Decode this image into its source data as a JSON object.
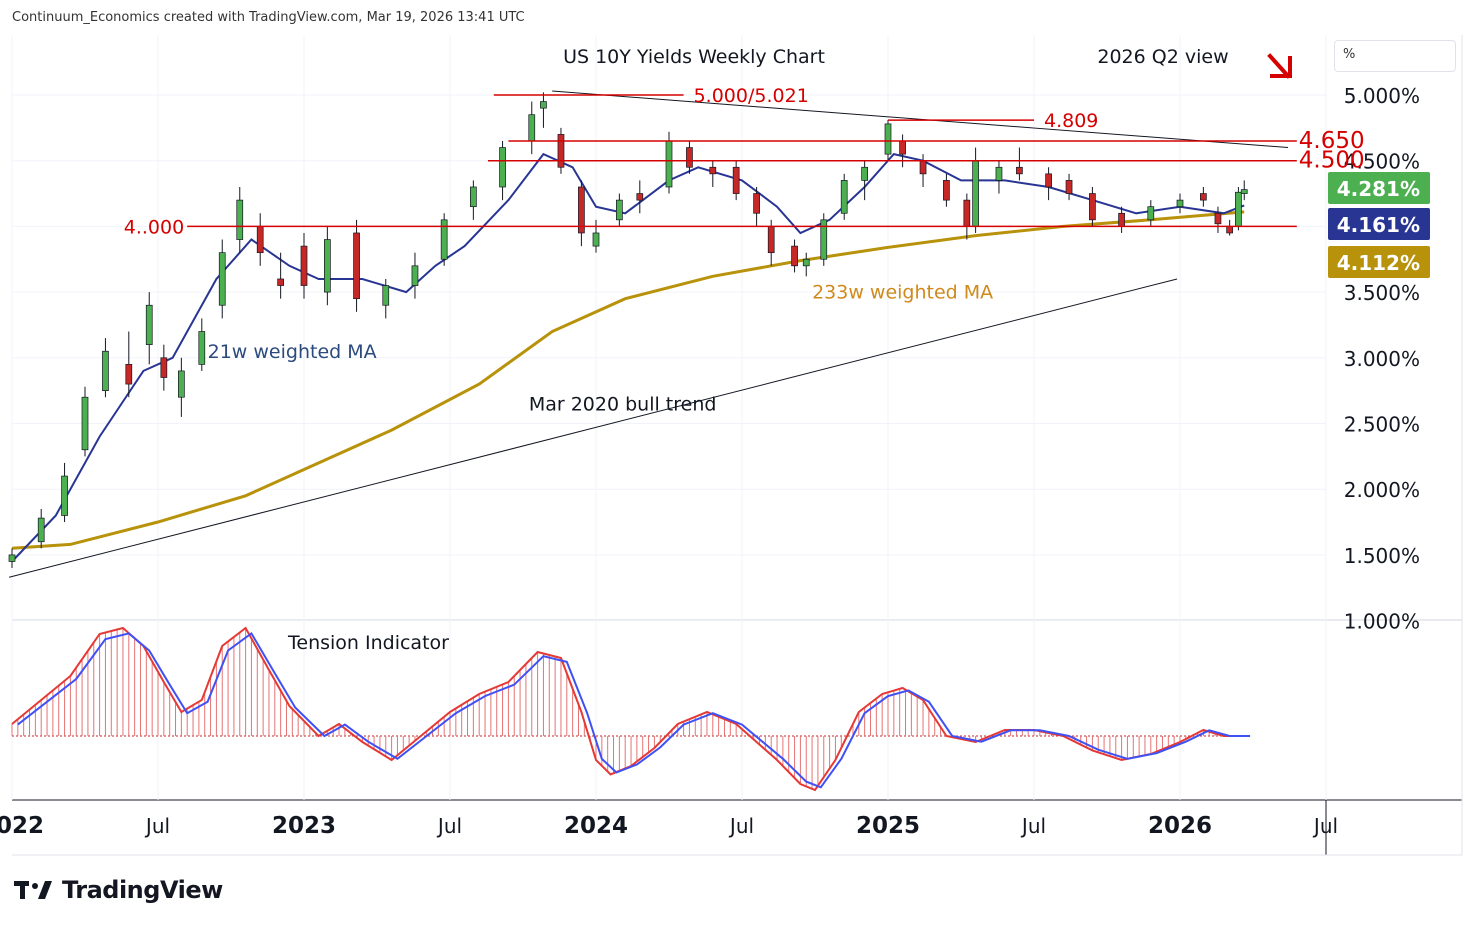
{
  "header": "Continuum_Economics created with TradingView.com, Mar 19, 2026 13:41 UTC",
  "unit": "%",
  "logo_text": "TradingView",
  "chart_data": {
    "type": "candlestick",
    "title": "US 10Y Yields Weekly Chart",
    "view_label": "2026 Q2 view",
    "y_ticks": [
      "5.000%",
      "4.500%",
      "3.500%",
      "3.000%",
      "2.500%",
      "2.000%",
      "1.500%",
      "1.000%"
    ],
    "y_tick_values": [
      5.0,
      4.5,
      3.5,
      3.0,
      2.5,
      2.0,
      1.5,
      1.0
    ],
    "ylim": [
      0.95,
      5.35
    ],
    "x_ticks": [
      "2022",
      "Jul",
      "2023",
      "Jul",
      "2024",
      "Jul",
      "2025",
      "Jul",
      "2026",
      "Jul"
    ],
    "x_tick_dates": [
      2022.0,
      2022.5,
      2023.0,
      2023.5,
      2024.0,
      2024.5,
      2025.0,
      2025.5,
      2026.0,
      2026.5
    ],
    "price_labels": [
      {
        "text": "4.281%",
        "value": 4.281,
        "color": "#4caf50"
      },
      {
        "text": "4.161%",
        "value": 4.161,
        "color": "#283593"
      },
      {
        "text": "4.112%",
        "value": 4.112,
        "color": "#b8920a"
      }
    ],
    "levels": [
      {
        "label": "5.000/5.021",
        "value": 5.0,
        "from": 2023.65,
        "to": 2024.3
      },
      {
        "label": "4.809",
        "value": 4.809,
        "from": 2025.0,
        "to": 2025.5
      },
      {
        "label": "4.650",
        "value": 4.65,
        "from": 2023.7,
        "to": 2026.4
      },
      {
        "label": "4.500",
        "value": 4.5,
        "from": 2023.63,
        "to": 2026.4
      },
      {
        "label": "4..000",
        "value": 4.0,
        "from": 2022.6,
        "to": 2026.4
      }
    ],
    "trendlines": [
      {
        "label": "Mar 2020 bull trend",
        "from": [
          2021.99,
          1.33
        ],
        "to": [
          2025.99,
          3.6
        ]
      },
      {
        "label": "",
        "from": [
          2023.85,
          5.03
        ],
        "to": [
          2026.37,
          4.6
        ]
      }
    ],
    "annotations": [
      {
        "text": "21w weighted MA",
        "date": 2022.67,
        "value": 3.0,
        "color": "#2b4a7d"
      },
      {
        "text": "233w weighted MA",
        "date": 2024.74,
        "value": 3.45,
        "color": "#d08a1c"
      },
      {
        "text": "Mar 2020 bull trend",
        "date": 2023.77,
        "value": 2.6,
        "color": "#131722"
      }
    ],
    "ma21_points": [
      [
        2022.0,
        1.45
      ],
      [
        2022.15,
        1.8
      ],
      [
        2022.3,
        2.4
      ],
      [
        2022.45,
        2.9
      ],
      [
        2022.55,
        3.0
      ],
      [
        2022.7,
        3.6
      ],
      [
        2022.82,
        3.9
      ],
      [
        2022.95,
        3.7
      ],
      [
        2023.05,
        3.6
      ],
      [
        2023.2,
        3.6
      ],
      [
        2023.35,
        3.5
      ],
      [
        2023.45,
        3.7
      ],
      [
        2023.55,
        3.85
      ],
      [
        2023.7,
        4.2
      ],
      [
        2023.82,
        4.55
      ],
      [
        2023.92,
        4.45
      ],
      [
        2024.0,
        4.15
      ],
      [
        2024.1,
        4.1
      ],
      [
        2024.25,
        4.35
      ],
      [
        2024.35,
        4.45
      ],
      [
        2024.5,
        4.35
      ],
      [
        2024.62,
        4.15
      ],
      [
        2024.7,
        3.95
      ],
      [
        2024.8,
        4.05
      ],
      [
        2024.92,
        4.3
      ],
      [
        2025.02,
        4.55
      ],
      [
        2025.12,
        4.5
      ],
      [
        2025.25,
        4.35
      ],
      [
        2025.4,
        4.35
      ],
      [
        2025.55,
        4.3
      ],
      [
        2025.7,
        4.2
      ],
      [
        2025.85,
        4.1
      ],
      [
        2026.0,
        4.15
      ],
      [
        2026.15,
        4.1
      ],
      [
        2026.22,
        4.16
      ]
    ],
    "ma233_points": [
      [
        2022.0,
        1.55
      ],
      [
        2022.2,
        1.58
      ],
      [
        2022.5,
        1.75
      ],
      [
        2022.8,
        1.95
      ],
      [
        2023.0,
        2.15
      ],
      [
        2023.3,
        2.45
      ],
      [
        2023.6,
        2.8
      ],
      [
        2023.85,
        3.2
      ],
      [
        2024.1,
        3.45
      ],
      [
        2024.4,
        3.62
      ],
      [
        2024.7,
        3.74
      ],
      [
        2025.0,
        3.84
      ],
      [
        2025.3,
        3.93
      ],
      [
        2025.6,
        4.0
      ],
      [
        2025.9,
        4.05
      ],
      [
        2026.22,
        4.11
      ]
    ],
    "candles": [
      {
        "x": 2022.0,
        "o": 1.45,
        "c": 1.5,
        "h": 1.55,
        "l": 1.4
      },
      {
        "x": 2022.1,
        "o": 1.6,
        "c": 1.78,
        "h": 1.85,
        "l": 1.55
      },
      {
        "x": 2022.18,
        "o": 1.8,
        "c": 2.1,
        "h": 2.2,
        "l": 1.75
      },
      {
        "x": 2022.25,
        "o": 2.3,
        "c": 2.7,
        "h": 2.78,
        "l": 2.25
      },
      {
        "x": 2022.32,
        "o": 2.75,
        "c": 3.05,
        "h": 3.15,
        "l": 2.7
      },
      {
        "x": 2022.4,
        "o": 2.95,
        "c": 2.8,
        "h": 3.2,
        "l": 2.7
      },
      {
        "x": 2022.47,
        "o": 3.1,
        "c": 3.4,
        "h": 3.5,
        "l": 2.95
      },
      {
        "x": 2022.52,
        "o": 3.0,
        "c": 2.85,
        "h": 3.1,
        "l": 2.75
      },
      {
        "x": 2022.58,
        "o": 2.7,
        "c": 2.9,
        "h": 3.0,
        "l": 2.55
      },
      {
        "x": 2022.65,
        "o": 2.95,
        "c": 3.2,
        "h": 3.3,
        "l": 2.9
      },
      {
        "x": 2022.72,
        "o": 3.4,
        "c": 3.8,
        "h": 3.9,
        "l": 3.3
      },
      {
        "x": 2022.78,
        "o": 3.9,
        "c": 4.2,
        "h": 4.3,
        "l": 3.8
      },
      {
        "x": 2022.85,
        "o": 4.0,
        "c": 3.8,
        "h": 4.1,
        "l": 3.7
      },
      {
        "x": 2022.92,
        "o": 3.6,
        "c": 3.55,
        "h": 3.8,
        "l": 3.45
      },
      {
        "x": 2023.0,
        "o": 3.85,
        "c": 3.55,
        "h": 3.95,
        "l": 3.45
      },
      {
        "x": 2023.08,
        "o": 3.5,
        "c": 3.9,
        "h": 4.0,
        "l": 3.4
      },
      {
        "x": 2023.18,
        "o": 3.95,
        "c": 3.45,
        "h": 4.05,
        "l": 3.35
      },
      {
        "x": 2023.28,
        "o": 3.4,
        "c": 3.55,
        "h": 3.6,
        "l": 3.3
      },
      {
        "x": 2023.38,
        "o": 3.55,
        "c": 3.7,
        "h": 3.8,
        "l": 3.45
      },
      {
        "x": 2023.48,
        "o": 3.75,
        "c": 4.05,
        "h": 4.1,
        "l": 3.7
      },
      {
        "x": 2023.58,
        "o": 4.15,
        "c": 4.3,
        "h": 4.35,
        "l": 4.05
      },
      {
        "x": 2023.68,
        "o": 4.3,
        "c": 4.6,
        "h": 4.65,
        "l": 4.2
      },
      {
        "x": 2023.78,
        "o": 4.65,
        "c": 4.85,
        "h": 4.95,
        "l": 4.55
      },
      {
        "x": 2023.82,
        "o": 4.9,
        "c": 4.95,
        "h": 5.02,
        "l": 4.75
      },
      {
        "x": 2023.88,
        "o": 4.7,
        "c": 4.45,
        "h": 4.75,
        "l": 4.4
      },
      {
        "x": 2023.95,
        "o": 4.3,
        "c": 3.95,
        "h": 4.35,
        "l": 3.85
      },
      {
        "x": 2024.0,
        "o": 3.85,
        "c": 3.95,
        "h": 4.05,
        "l": 3.8
      },
      {
        "x": 2024.08,
        "o": 4.05,
        "c": 4.2,
        "h": 4.25,
        "l": 4.0
      },
      {
        "x": 2024.15,
        "o": 4.25,
        "c": 4.2,
        "h": 4.35,
        "l": 4.1
      },
      {
        "x": 2024.25,
        "o": 4.3,
        "c": 4.65,
        "h": 4.72,
        "l": 4.25
      },
      {
        "x": 2024.32,
        "o": 4.6,
        "c": 4.45,
        "h": 4.65,
        "l": 4.4
      },
      {
        "x": 2024.4,
        "o": 4.45,
        "c": 4.4,
        "h": 4.5,
        "l": 4.3
      },
      {
        "x": 2024.48,
        "o": 4.45,
        "c": 4.25,
        "h": 4.5,
        "l": 4.2
      },
      {
        "x": 2024.55,
        "o": 4.25,
        "c": 4.1,
        "h": 4.3,
        "l": 4.0
      },
      {
        "x": 2024.6,
        "o": 4.0,
        "c": 3.8,
        "h": 4.05,
        "l": 3.7
      },
      {
        "x": 2024.68,
        "o": 3.85,
        "c": 3.7,
        "h": 3.9,
        "l": 3.65
      },
      {
        "x": 2024.72,
        "o": 3.7,
        "c": 3.75,
        "h": 3.8,
        "l": 3.62
      },
      {
        "x": 2024.78,
        "o": 3.75,
        "c": 4.05,
        "h": 4.1,
        "l": 3.7
      },
      {
        "x": 2024.85,
        "o": 4.1,
        "c": 4.35,
        "h": 4.4,
        "l": 4.05
      },
      {
        "x": 2024.92,
        "o": 4.35,
        "c": 4.45,
        "h": 4.5,
        "l": 4.2
      },
      {
        "x": 2025.0,
        "o": 4.55,
        "c": 4.78,
        "h": 4.81,
        "l": 4.5
      },
      {
        "x": 2025.05,
        "o": 4.65,
        "c": 4.55,
        "h": 4.7,
        "l": 4.45
      },
      {
        "x": 2025.12,
        "o": 4.5,
        "c": 4.4,
        "h": 4.55,
        "l": 4.3
      },
      {
        "x": 2025.2,
        "o": 4.35,
        "c": 4.2,
        "h": 4.4,
        "l": 4.15
      },
      {
        "x": 2025.27,
        "o": 4.2,
        "c": 4.0,
        "h": 4.25,
        "l": 3.9
      },
      {
        "x": 2025.3,
        "o": 4.0,
        "c": 4.5,
        "h": 4.6,
        "l": 3.95
      },
      {
        "x": 2025.38,
        "o": 4.35,
        "c": 4.45,
        "h": 4.5,
        "l": 4.25
      },
      {
        "x": 2025.45,
        "o": 4.45,
        "c": 4.4,
        "h": 4.6,
        "l": 4.35
      },
      {
        "x": 2025.55,
        "o": 4.4,
        "c": 4.3,
        "h": 4.45,
        "l": 4.2
      },
      {
        "x": 2025.62,
        "o": 4.35,
        "c": 4.25,
        "h": 4.4,
        "l": 4.2
      },
      {
        "x": 2025.7,
        "o": 4.25,
        "c": 4.05,
        "h": 4.3,
        "l": 4.0
      },
      {
        "x": 2025.8,
        "o": 4.1,
        "c": 4.0,
        "h": 4.15,
        "l": 3.95
      },
      {
        "x": 2025.9,
        "o": 4.05,
        "c": 4.15,
        "h": 4.2,
        "l": 4.0
      },
      {
        "x": 2026.0,
        "o": 4.15,
        "c": 4.2,
        "h": 4.25,
        "l": 4.1
      },
      {
        "x": 2026.08,
        "o": 4.25,
        "c": 4.2,
        "h": 4.3,
        "l": 4.15
      },
      {
        "x": 2026.13,
        "o": 4.1,
        "c": 4.02,
        "h": 4.15,
        "l": 3.95
      },
      {
        "x": 2026.17,
        "o": 4.0,
        "c": 3.95,
        "h": 4.05,
        "l": 3.93
      },
      {
        "x": 2026.2,
        "o": 4.0,
        "c": 4.26,
        "h": 4.3,
        "l": 3.97
      },
      {
        "x": 2026.22,
        "o": 4.25,
        "c": 4.28,
        "h": 4.35,
        "l": 4.2
      }
    ],
    "tension_indicator": {
      "label": "Tension Indicator",
      "points": [
        [
          2022.0,
          0.1
        ],
        [
          2022.1,
          0.3
        ],
        [
          2022.2,
          0.5
        ],
        [
          2022.3,
          0.85
        ],
        [
          2022.38,
          0.9
        ],
        [
          2022.45,
          0.75
        ],
        [
          2022.52,
          0.45
        ],
        [
          2022.58,
          0.2
        ],
        [
          2022.65,
          0.3
        ],
        [
          2022.72,
          0.75
        ],
        [
          2022.8,
          0.9
        ],
        [
          2022.88,
          0.55
        ],
        [
          2022.95,
          0.25
        ],
        [
          2023.05,
          0.0
        ],
        [
          2023.12,
          0.1
        ],
        [
          2023.2,
          -0.05
        ],
        [
          2023.3,
          -0.2
        ],
        [
          2023.4,
          0.0
        ],
        [
          2023.5,
          0.2
        ],
        [
          2023.6,
          0.35
        ],
        [
          2023.7,
          0.45
        ],
        [
          2023.8,
          0.7
        ],
        [
          2023.88,
          0.65
        ],
        [
          2023.95,
          0.2
        ],
        [
          2024.0,
          -0.2
        ],
        [
          2024.05,
          -0.32
        ],
        [
          2024.12,
          -0.25
        ],
        [
          2024.2,
          -0.1
        ],
        [
          2024.28,
          0.1
        ],
        [
          2024.38,
          0.2
        ],
        [
          2024.48,
          0.1
        ],
        [
          2024.55,
          -0.05
        ],
        [
          2024.62,
          -0.2
        ],
        [
          2024.7,
          -0.4
        ],
        [
          2024.75,
          -0.45
        ],
        [
          2024.82,
          -0.2
        ],
        [
          2024.9,
          0.2
        ],
        [
          2024.98,
          0.35
        ],
        [
          2025.05,
          0.4
        ],
        [
          2025.12,
          0.3
        ],
        [
          2025.2,
          0.0
        ],
        [
          2025.3,
          -0.05
        ],
        [
          2025.4,
          0.05
        ],
        [
          2025.5,
          0.05
        ],
        [
          2025.6,
          0.0
        ],
        [
          2025.7,
          -0.12
        ],
        [
          2025.8,
          -0.2
        ],
        [
          2025.9,
          -0.15
        ],
        [
          2026.0,
          -0.05
        ],
        [
          2026.08,
          0.05
        ],
        [
          2026.15,
          0.0
        ],
        [
          2026.22,
          0.0
        ]
      ]
    }
  }
}
